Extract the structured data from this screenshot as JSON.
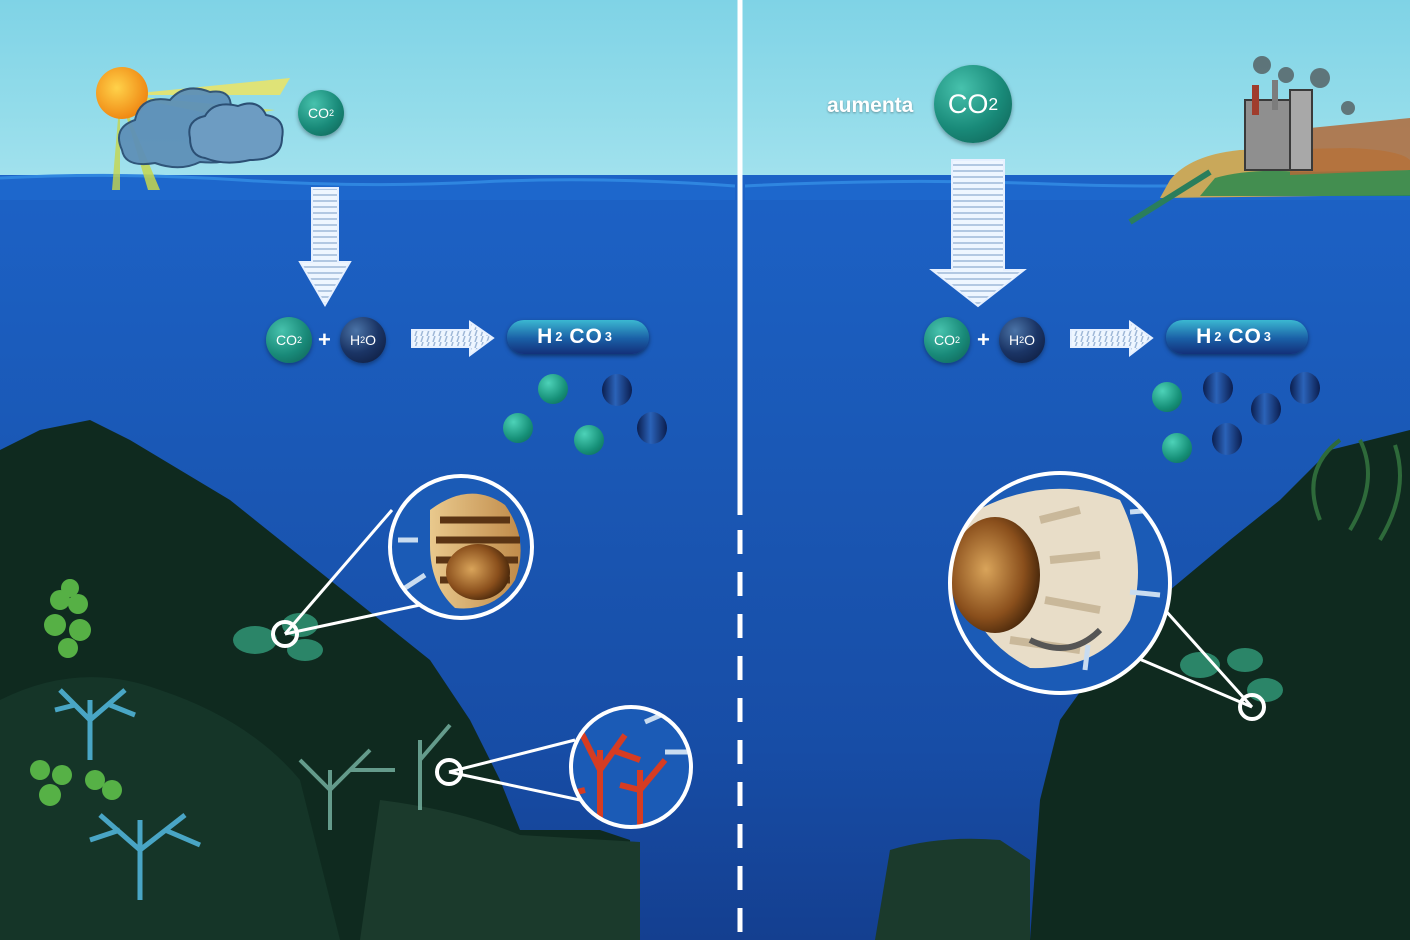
{
  "diagram": {
    "left_panel": {
      "sky_co2": {
        "base": "CO",
        "sub": "2"
      },
      "reaction": {
        "co2": {
          "base": "CO",
          "sub": "2"
        },
        "plus": "+",
        "h2o": {
          "pre": "H",
          "sub": "2",
          "post": "O"
        },
        "product": {
          "h": "H",
          "h_sub": "2",
          "co": "CO",
          "co_sub": "3"
        }
      }
    },
    "right_panel": {
      "increase_label": "aumenta",
      "sky_co2": {
        "base": "CO",
        "sub": "2"
      },
      "reaction": {
        "co2": {
          "base": "CO",
          "sub": "2"
        },
        "plus": "+",
        "h2o": {
          "pre": "H",
          "sub": "2",
          "post": "O"
        },
        "product": {
          "h": "H",
          "h_sub": "2",
          "co": "CO",
          "co_sub": "3"
        }
      }
    },
    "colors": {
      "sky": "#8fd9e8",
      "sea": "#1a57b4",
      "co2_molecule": "#198a79",
      "h2o_molecule": "#1b3566",
      "rock": "#102a1c",
      "divider": "#ffffff"
    },
    "icons": [
      "sun-icon",
      "cloud-icon",
      "factory-icon",
      "down-arrow-icon",
      "right-arrow-icon",
      "shell-icon",
      "coral-icon",
      "magnifier-circle-icon"
    ]
  }
}
